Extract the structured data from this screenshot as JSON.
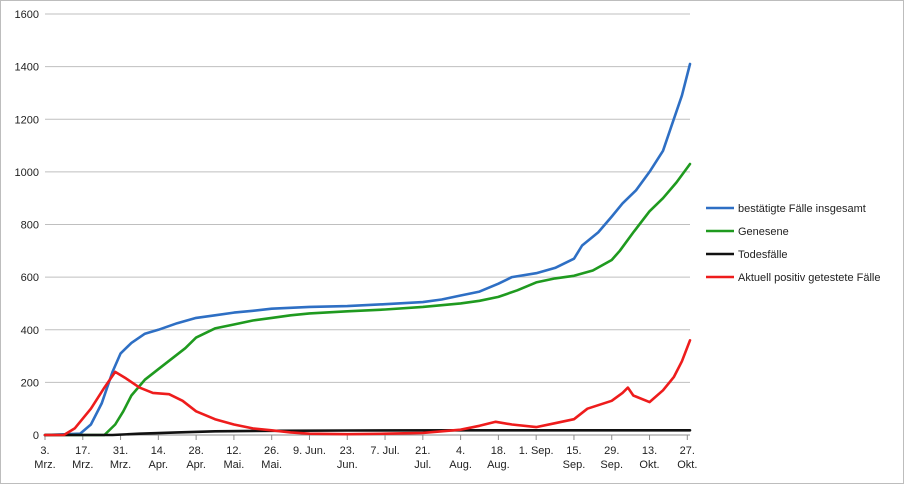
{
  "chart_data": {
    "type": "line",
    "title": "",
    "xlabel": "",
    "ylabel": "",
    "ylim": [
      0,
      1600
    ],
    "yticks": [
      0,
      200,
      400,
      600,
      800,
      1000,
      1200,
      1400,
      1600
    ],
    "grid": true,
    "legend_position": "right",
    "x_start": "2020-03-03",
    "x_end": "2020-10-28",
    "x_ticks": [
      {
        "date": "2020-03-03",
        "line1": "3.",
        "line2": "Mrz."
      },
      {
        "date": "2020-03-17",
        "line1": "17.",
        "line2": "Mrz."
      },
      {
        "date": "2020-03-31",
        "line1": "31.",
        "line2": "Mrz."
      },
      {
        "date": "2020-04-14",
        "line1": "14.",
        "line2": "Apr."
      },
      {
        "date": "2020-04-28",
        "line1": "28.",
        "line2": "Apr."
      },
      {
        "date": "2020-05-12",
        "line1": "12.",
        "line2": "Mai."
      },
      {
        "date": "2020-05-26",
        "line1": "26.",
        "line2": "Mai."
      },
      {
        "date": "2020-06-09",
        "line1": "9. Jun.",
        "line2": ""
      },
      {
        "date": "2020-06-23",
        "line1": "23.",
        "line2": "Jun."
      },
      {
        "date": "2020-07-07",
        "line1": "7. Jul.",
        "line2": ""
      },
      {
        "date": "2020-07-21",
        "line1": "21.",
        "line2": "Jul."
      },
      {
        "date": "2020-08-04",
        "line1": "4.",
        "line2": "Aug."
      },
      {
        "date": "2020-08-18",
        "line1": "18.",
        "line2": "Aug."
      },
      {
        "date": "2020-09-01",
        "line1": "1. Sep.",
        "line2": ""
      },
      {
        "date": "2020-09-15",
        "line1": "15.",
        "line2": "Sep."
      },
      {
        "date": "2020-09-29",
        "line1": "29.",
        "line2": "Sep."
      },
      {
        "date": "2020-10-13",
        "line1": "13.",
        "line2": "Okt."
      },
      {
        "date": "2020-10-27",
        "line1": "27.",
        "line2": "Okt."
      }
    ],
    "series": [
      {
        "name": "bestätigte Fälle insgesamt",
        "color": "#2e6fc4",
        "points": [
          [
            "2020-03-03",
            0
          ],
          [
            "2020-03-16",
            5
          ],
          [
            "2020-03-20",
            40
          ],
          [
            "2020-03-24",
            120
          ],
          [
            "2020-03-28",
            240
          ],
          [
            "2020-03-31",
            310
          ],
          [
            "2020-04-04",
            350
          ],
          [
            "2020-04-09",
            385
          ],
          [
            "2020-04-14",
            400
          ],
          [
            "2020-04-21",
            425
          ],
          [
            "2020-04-28",
            445
          ],
          [
            "2020-05-05",
            455
          ],
          [
            "2020-05-12",
            465
          ],
          [
            "2020-05-19",
            472
          ],
          [
            "2020-05-26",
            480
          ],
          [
            "2020-06-09",
            487
          ],
          [
            "2020-06-23",
            490
          ],
          [
            "2020-07-07",
            497
          ],
          [
            "2020-07-21",
            505
          ],
          [
            "2020-07-28",
            515
          ],
          [
            "2020-08-04",
            530
          ],
          [
            "2020-08-11",
            545
          ],
          [
            "2020-08-18",
            575
          ],
          [
            "2020-08-23",
            600
          ],
          [
            "2020-09-01",
            615
          ],
          [
            "2020-09-08",
            635
          ],
          [
            "2020-09-15",
            670
          ],
          [
            "2020-09-18",
            720
          ],
          [
            "2020-09-24",
            770
          ],
          [
            "2020-09-29",
            830
          ],
          [
            "2020-10-03",
            880
          ],
          [
            "2020-10-08",
            930
          ],
          [
            "2020-10-13",
            1000
          ],
          [
            "2020-10-18",
            1080
          ],
          [
            "2020-10-21",
            1170
          ],
          [
            "2020-10-25",
            1290
          ],
          [
            "2020-10-28",
            1410
          ]
        ]
      },
      {
        "name": "Genesene",
        "color": "#1f9a1f",
        "points": [
          [
            "2020-03-03",
            0
          ],
          [
            "2020-03-25",
            0
          ],
          [
            "2020-03-29",
            40
          ],
          [
            "2020-04-01",
            90
          ],
          [
            "2020-04-04",
            150
          ],
          [
            "2020-04-09",
            210
          ],
          [
            "2020-04-14",
            250
          ],
          [
            "2020-04-19",
            290
          ],
          [
            "2020-04-24",
            330
          ],
          [
            "2020-04-28",
            370
          ],
          [
            "2020-05-05",
            405
          ],
          [
            "2020-05-12",
            420
          ],
          [
            "2020-05-19",
            435
          ],
          [
            "2020-05-26",
            445
          ],
          [
            "2020-06-02",
            455
          ],
          [
            "2020-06-09",
            462
          ],
          [
            "2020-06-23",
            470
          ],
          [
            "2020-07-07",
            477
          ],
          [
            "2020-07-21",
            487
          ],
          [
            "2020-08-04",
            500
          ],
          [
            "2020-08-11",
            510
          ],
          [
            "2020-08-18",
            525
          ],
          [
            "2020-08-25",
            550
          ],
          [
            "2020-09-01",
            580
          ],
          [
            "2020-09-08",
            595
          ],
          [
            "2020-09-15",
            605
          ],
          [
            "2020-09-22",
            625
          ],
          [
            "2020-09-29",
            665
          ],
          [
            "2020-10-02",
            700
          ],
          [
            "2020-10-07",
            770
          ],
          [
            "2020-10-13",
            850
          ],
          [
            "2020-10-18",
            900
          ],
          [
            "2020-10-23",
            960
          ],
          [
            "2020-10-28",
            1030
          ]
        ]
      },
      {
        "name": "Todesfälle",
        "color": "#111111",
        "points": [
          [
            "2020-03-03",
            0
          ],
          [
            "2020-03-28",
            0
          ],
          [
            "2020-04-07",
            5
          ],
          [
            "2020-04-21",
            10
          ],
          [
            "2020-05-05",
            14
          ],
          [
            "2020-05-26",
            16
          ],
          [
            "2020-06-23",
            17
          ],
          [
            "2020-08-04",
            18
          ],
          [
            "2020-09-15",
            18
          ],
          [
            "2020-10-28",
            18
          ]
        ]
      },
      {
        "name": "Aktuell positiv getestete Fälle",
        "color": "#ee1c1c",
        "points": [
          [
            "2020-03-03",
            0
          ],
          [
            "2020-03-10",
            0
          ],
          [
            "2020-03-14",
            25
          ],
          [
            "2020-03-20",
            100
          ],
          [
            "2020-03-25",
            180
          ],
          [
            "2020-03-29",
            240
          ],
          [
            "2020-04-02",
            215
          ],
          [
            "2020-04-07",
            180
          ],
          [
            "2020-04-12",
            160
          ],
          [
            "2020-04-18",
            155
          ],
          [
            "2020-04-23",
            130
          ],
          [
            "2020-04-28",
            90
          ],
          [
            "2020-05-05",
            60
          ],
          [
            "2020-05-12",
            40
          ],
          [
            "2020-05-19",
            25
          ],
          [
            "2020-05-26",
            18
          ],
          [
            "2020-06-02",
            10
          ],
          [
            "2020-06-09",
            5
          ],
          [
            "2020-06-23",
            3
          ],
          [
            "2020-07-07",
            5
          ],
          [
            "2020-07-21",
            8
          ],
          [
            "2020-08-04",
            20
          ],
          [
            "2020-08-11",
            35
          ],
          [
            "2020-08-17",
            50
          ],
          [
            "2020-08-23",
            40
          ],
          [
            "2020-09-01",
            30
          ],
          [
            "2020-09-08",
            45
          ],
          [
            "2020-09-15",
            60
          ],
          [
            "2020-09-20",
            100
          ],
          [
            "2020-09-29",
            130
          ],
          [
            "2020-10-03",
            160
          ],
          [
            "2020-10-05",
            180
          ],
          [
            "2020-10-07",
            150
          ],
          [
            "2020-10-13",
            125
          ],
          [
            "2020-10-18",
            170
          ],
          [
            "2020-10-22",
            220
          ],
          [
            "2020-10-25",
            280
          ],
          [
            "2020-10-28",
            360
          ]
        ]
      }
    ]
  }
}
